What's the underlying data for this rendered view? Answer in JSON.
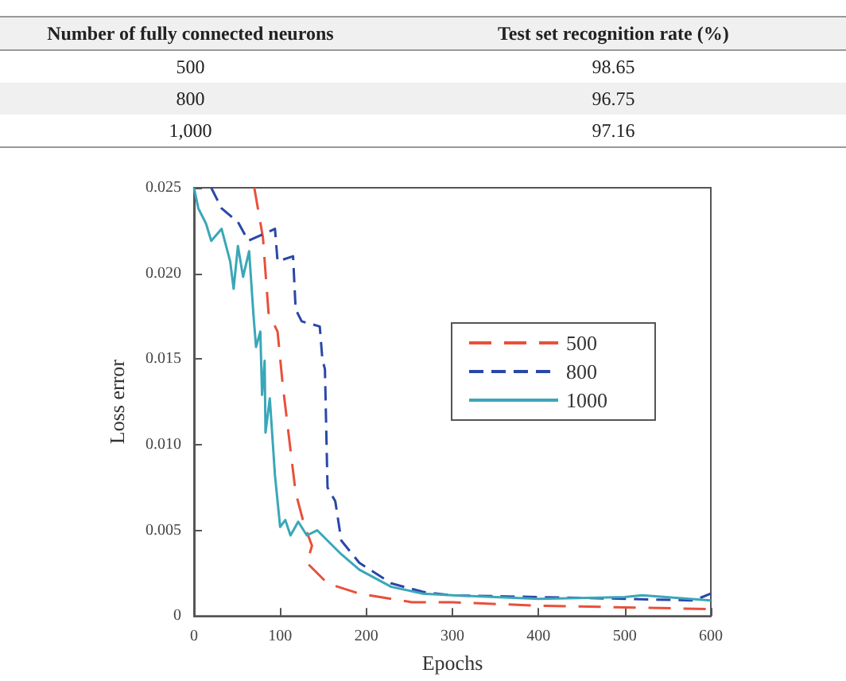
{
  "chart_data": [
    {
      "type": "other",
      "annotations": [
        "Number of fully connected neurons",
        "Test set recognition rate (%)",
        "500",
        "98.65",
        "800",
        "96.75",
        "1,000",
        "97.16"
      ]
    },
    {
      "type": "line",
      "xlabel": "Epochs",
      "ylabel": "Loss error",
      "xlim": [
        0,
        600
      ],
      "xticks": [
        0,
        100,
        200,
        300,
        400,
        500,
        600
      ],
      "ylim": [
        0,
        0.025
      ],
      "yticks": [
        0,
        0.005,
        {
          "value": 0.01,
          "label": "0.010"
        },
        0.015,
        {
          "value": 0.02,
          "label": "0.020"
        },
        0.025
      ],
      "grid": false,
      "legend": "right",
      "marker": "none",
      "series": [
        {
          "name": "500",
          "color": "#e8503a",
          "line_style": "dashed",
          "x": [
            70,
            80,
            86.5,
            97,
            103,
            112,
            118,
            128,
            137,
            131,
            155,
            192,
            253,
            300,
            400,
            500,
            600
          ],
          "values": [
            0.025,
            0.0221,
            0.0177,
            0.0166,
            0.0135,
            0.0097,
            0.0072,
            0.0053,
            0.0041,
            0.0031,
            0.0019,
            0.0013,
            0.0008,
            0.0008,
            0.0006,
            0.0005,
            0.0004
          ]
        },
        {
          "name": "800",
          "color": "#2a47a8",
          "line_style": "dashed",
          "x": [
            20,
            32,
            51,
            63,
            94,
            97,
            115,
            118,
            125,
            146,
            149,
            152,
            155,
            164,
            171,
            192,
            229,
            266,
            300,
            400,
            500,
            580,
            600
          ],
          "values": [
            0.025,
            0.0238,
            0.023,
            0.0219,
            0.0226,
            0.0207,
            0.021,
            0.0179,
            0.0172,
            0.0169,
            0.015,
            0.0144,
            0.0075,
            0.0067,
            0.0044,
            0.0031,
            0.0019,
            0.0014,
            0.0012,
            0.0011,
            0.001,
            0.0009,
            0.0013
          ]
        },
        {
          "name": "1000",
          "color": "#3aa7b8",
          "line_style": "solid",
          "x": [
            0,
            5,
            14,
            20,
            32,
            42,
            46,
            51,
            57,
            64,
            69,
            72,
            77,
            79,
            82,
            83,
            88,
            94,
            100,
            106,
            112,
            121,
            131,
            143,
            155,
            171,
            192,
            229,
            266,
            300,
            400,
            500,
            520,
            600
          ],
          "values": [
            0.025,
            0.0238,
            0.0229,
            0.0219,
            0.0226,
            0.0207,
            0.0191,
            0.0216,
            0.0198,
            0.0213,
            0.0176,
            0.0157,
            0.0166,
            0.0129,
            0.0149,
            0.0107,
            0.0127,
            0.0082,
            0.0052,
            0.0056,
            0.0047,
            0.0055,
            0.0047,
            0.005,
            0.0044,
            0.0036,
            0.0027,
            0.0017,
            0.0013,
            0.0012,
            0.001,
            0.0011,
            0.0012,
            0.0009
          ]
        }
      ]
    }
  ]
}
